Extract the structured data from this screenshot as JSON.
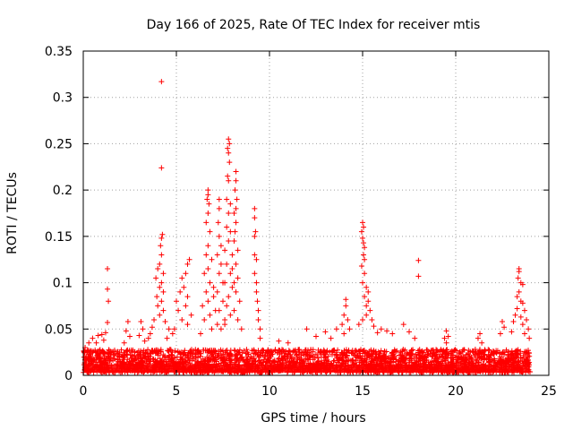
{
  "chart_data": {
    "type": "scatter",
    "title": "Day 166 of 2025, Rate Of TEC Index for receiver mtis",
    "xlabel": "GPS time / hours",
    "ylabel": "ROTI / TECUs",
    "xlim": [
      0,
      25
    ],
    "ylim": [
      0,
      0.35
    ],
    "x_ticks": [
      0,
      5,
      10,
      15,
      20,
      25
    ],
    "y_ticks": [
      0,
      0.05,
      0.1,
      0.15,
      0.2,
      0.25,
      0.3,
      0.35
    ],
    "x_tick_labels": [
      "0",
      "5",
      "10",
      "15",
      "20",
      "25"
    ],
    "y_tick_labels": [
      "0",
      "0.05",
      "0.1",
      "0.15",
      "0.2",
      "0.25",
      "0.3",
      "0.35"
    ],
    "grid": true,
    "marker": "plus",
    "marker_color": "#ff0000",
    "baseline_band": {
      "x_range": [
        0,
        24
      ],
      "y_range": [
        0.003,
        0.028
      ],
      "note": "dense cloud of points throughout the day"
    },
    "points": [
      {
        "x": 4.2,
        "y": 0.317
      },
      {
        "x": 4.2,
        "y": 0.224
      },
      {
        "x": 4.25,
        "y": 0.152
      },
      {
        "x": 4.2,
        "y": 0.148
      },
      {
        "x": 4.15,
        "y": 0.14
      },
      {
        "x": 4.2,
        "y": 0.13
      },
      {
        "x": 4.1,
        "y": 0.12
      },
      {
        "x": 4.0,
        "y": 0.115
      },
      {
        "x": 4.3,
        "y": 0.11
      },
      {
        "x": 3.9,
        "y": 0.105
      },
      {
        "x": 4.2,
        "y": 0.1
      },
      {
        "x": 4.1,
        "y": 0.095
      },
      {
        "x": 4.3,
        "y": 0.09
      },
      {
        "x": 3.95,
        "y": 0.085
      },
      {
        "x": 4.2,
        "y": 0.08
      },
      {
        "x": 4.0,
        "y": 0.075
      },
      {
        "x": 4.3,
        "y": 0.07
      },
      {
        "x": 4.1,
        "y": 0.065
      },
      {
        "x": 3.8,
        "y": 0.06
      },
      {
        "x": 4.4,
        "y": 0.058
      },
      {
        "x": 3.7,
        "y": 0.052
      },
      {
        "x": 4.6,
        "y": 0.05
      },
      {
        "x": 3.6,
        "y": 0.045
      },
      {
        "x": 4.8,
        "y": 0.045
      },
      {
        "x": 3.5,
        "y": 0.04
      },
      {
        "x": 4.5,
        "y": 0.04
      },
      {
        "x": 5.7,
        "y": 0.125
      },
      {
        "x": 5.6,
        "y": 0.12
      },
      {
        "x": 5.5,
        "y": 0.11
      },
      {
        "x": 5.3,
        "y": 0.105
      },
      {
        "x": 5.4,
        "y": 0.095
      },
      {
        "x": 5.2,
        "y": 0.09
      },
      {
        "x": 5.6,
        "y": 0.085
      },
      {
        "x": 5.0,
        "y": 0.08
      },
      {
        "x": 5.5,
        "y": 0.075
      },
      {
        "x": 5.1,
        "y": 0.07
      },
      {
        "x": 5.8,
        "y": 0.065
      },
      {
        "x": 5.3,
        "y": 0.06
      },
      {
        "x": 5.6,
        "y": 0.055
      },
      {
        "x": 4.9,
        "y": 0.05
      },
      {
        "x": 6.7,
        "y": 0.2
      },
      {
        "x": 6.7,
        "y": 0.195
      },
      {
        "x": 6.65,
        "y": 0.19
      },
      {
        "x": 6.75,
        "y": 0.185
      },
      {
        "x": 6.7,
        "y": 0.175
      },
      {
        "x": 6.6,
        "y": 0.165
      },
      {
        "x": 6.8,
        "y": 0.155
      },
      {
        "x": 6.7,
        "y": 0.14
      },
      {
        "x": 6.6,
        "y": 0.13
      },
      {
        "x": 6.9,
        "y": 0.125
      },
      {
        "x": 6.7,
        "y": 0.115
      },
      {
        "x": 6.5,
        "y": 0.11
      },
      {
        "x": 6.8,
        "y": 0.1
      },
      {
        "x": 7.0,
        "y": 0.095
      },
      {
        "x": 6.6,
        "y": 0.09
      },
      {
        "x": 7.0,
        "y": 0.085
      },
      {
        "x": 6.7,
        "y": 0.08
      },
      {
        "x": 6.4,
        "y": 0.075
      },
      {
        "x": 7.1,
        "y": 0.07
      },
      {
        "x": 6.8,
        "y": 0.065
      },
      {
        "x": 6.5,
        "y": 0.06
      },
      {
        "x": 7.2,
        "y": 0.055
      },
      {
        "x": 6.9,
        "y": 0.05
      },
      {
        "x": 6.3,
        "y": 0.045
      },
      {
        "x": 7.3,
        "y": 0.19
      },
      {
        "x": 7.3,
        "y": 0.18
      },
      {
        "x": 7.25,
        "y": 0.165
      },
      {
        "x": 7.3,
        "y": 0.15
      },
      {
        "x": 7.4,
        "y": 0.14
      },
      {
        "x": 7.2,
        "y": 0.13
      },
      {
        "x": 7.4,
        "y": 0.12
      },
      {
        "x": 7.3,
        "y": 0.11
      },
      {
        "x": 7.5,
        "y": 0.1
      },
      {
        "x": 7.2,
        "y": 0.09
      },
      {
        "x": 7.5,
        "y": 0.08
      },
      {
        "x": 7.3,
        "y": 0.07
      },
      {
        "x": 7.6,
        "y": 0.06
      },
      {
        "x": 7.4,
        "y": 0.05
      },
      {
        "x": 7.8,
        "y": 0.255
      },
      {
        "x": 7.85,
        "y": 0.25
      },
      {
        "x": 7.75,
        "y": 0.245
      },
      {
        "x": 7.8,
        "y": 0.24
      },
      {
        "x": 7.85,
        "y": 0.23
      },
      {
        "x": 7.75,
        "y": 0.215
      },
      {
        "x": 7.8,
        "y": 0.21
      },
      {
        "x": 7.7,
        "y": 0.19
      },
      {
        "x": 7.9,
        "y": 0.185
      },
      {
        "x": 7.8,
        "y": 0.175
      },
      {
        "x": 7.7,
        "y": 0.16
      },
      {
        "x": 7.9,
        "y": 0.155
      },
      {
        "x": 7.8,
        "y": 0.145
      },
      {
        "x": 7.6,
        "y": 0.135
      },
      {
        "x": 8.0,
        "y": 0.13
      },
      {
        "x": 7.7,
        "y": 0.12
      },
      {
        "x": 7.9,
        "y": 0.11
      },
      {
        "x": 7.6,
        "y": 0.1
      },
      {
        "x": 8.0,
        "y": 0.095
      },
      {
        "x": 7.8,
        "y": 0.085
      },
      {
        "x": 7.7,
        "y": 0.075
      },
      {
        "x": 7.9,
        "y": 0.065
      },
      {
        "x": 7.6,
        "y": 0.055
      },
      {
        "x": 8.2,
        "y": 0.22
      },
      {
        "x": 8.2,
        "y": 0.21
      },
      {
        "x": 8.15,
        "y": 0.2
      },
      {
        "x": 8.25,
        "y": 0.19
      },
      {
        "x": 8.2,
        "y": 0.18
      },
      {
        "x": 8.1,
        "y": 0.175
      },
      {
        "x": 8.2,
        "y": 0.165
      },
      {
        "x": 8.15,
        "y": 0.155
      },
      {
        "x": 8.1,
        "y": 0.145
      },
      {
        "x": 8.3,
        "y": 0.135
      },
      {
        "x": 8.2,
        "y": 0.12
      },
      {
        "x": 8.0,
        "y": 0.115
      },
      {
        "x": 8.3,
        "y": 0.105
      },
      {
        "x": 8.1,
        "y": 0.1
      },
      {
        "x": 8.2,
        "y": 0.09
      },
      {
        "x": 8.4,
        "y": 0.08
      },
      {
        "x": 8.1,
        "y": 0.07
      },
      {
        "x": 8.3,
        "y": 0.06
      },
      {
        "x": 8.5,
        "y": 0.05
      },
      {
        "x": 9.2,
        "y": 0.18
      },
      {
        "x": 9.2,
        "y": 0.17
      },
      {
        "x": 9.25,
        "y": 0.155
      },
      {
        "x": 9.2,
        "y": 0.15
      },
      {
        "x": 9.2,
        "y": 0.13
      },
      {
        "x": 9.3,
        "y": 0.125
      },
      {
        "x": 9.2,
        "y": 0.11
      },
      {
        "x": 9.3,
        "y": 0.1
      },
      {
        "x": 9.3,
        "y": 0.09
      },
      {
        "x": 9.35,
        "y": 0.08
      },
      {
        "x": 9.4,
        "y": 0.07
      },
      {
        "x": 9.4,
        "y": 0.06
      },
      {
        "x": 9.5,
        "y": 0.05
      },
      {
        "x": 9.5,
        "y": 0.04
      },
      {
        "x": 1.3,
        "y": 0.115
      },
      {
        "x": 1.3,
        "y": 0.093
      },
      {
        "x": 1.35,
        "y": 0.08
      },
      {
        "x": 1.3,
        "y": 0.057
      },
      {
        "x": 1.2,
        "y": 0.046
      },
      {
        "x": 1.0,
        "y": 0.044
      },
      {
        "x": 0.8,
        "y": 0.043
      },
      {
        "x": 0.5,
        "y": 0.04
      },
      {
        "x": 0.3,
        "y": 0.035
      },
      {
        "x": 0.7,
        "y": 0.035
      },
      {
        "x": 1.1,
        "y": 0.038
      },
      {
        "x": 0.1,
        "y": 0.03
      },
      {
        "x": 2.4,
        "y": 0.058
      },
      {
        "x": 2.3,
        "y": 0.048
      },
      {
        "x": 2.5,
        "y": 0.042
      },
      {
        "x": 2.2,
        "y": 0.035
      },
      {
        "x": 3.1,
        "y": 0.058
      },
      {
        "x": 3.2,
        "y": 0.05
      },
      {
        "x": 3.0,
        "y": 0.043
      },
      {
        "x": 3.3,
        "y": 0.037
      },
      {
        "x": 10.5,
        "y": 0.037
      },
      {
        "x": 11.0,
        "y": 0.035
      },
      {
        "x": 12.0,
        "y": 0.05
      },
      {
        "x": 12.5,
        "y": 0.042
      },
      {
        "x": 13.0,
        "y": 0.047
      },
      {
        "x": 13.3,
        "y": 0.04
      },
      {
        "x": 13.6,
        "y": 0.05
      },
      {
        "x": 14.1,
        "y": 0.082
      },
      {
        "x": 14.1,
        "y": 0.075
      },
      {
        "x": 14.0,
        "y": 0.065
      },
      {
        "x": 14.2,
        "y": 0.06
      },
      {
        "x": 13.9,
        "y": 0.055
      },
      {
        "x": 14.3,
        "y": 0.05
      },
      {
        "x": 14.0,
        "y": 0.045
      },
      {
        "x": 15.0,
        "y": 0.165
      },
      {
        "x": 15.05,
        "y": 0.16
      },
      {
        "x": 14.95,
        "y": 0.155
      },
      {
        "x": 15.0,
        "y": 0.148
      },
      {
        "x": 15.05,
        "y": 0.143
      },
      {
        "x": 15.1,
        "y": 0.138
      },
      {
        "x": 15.05,
        "y": 0.13
      },
      {
        "x": 15.1,
        "y": 0.125
      },
      {
        "x": 14.95,
        "y": 0.118
      },
      {
        "x": 15.1,
        "y": 0.11
      },
      {
        "x": 15.0,
        "y": 0.1
      },
      {
        "x": 15.2,
        "y": 0.095
      },
      {
        "x": 15.3,
        "y": 0.09
      },
      {
        "x": 15.1,
        "y": 0.085
      },
      {
        "x": 15.3,
        "y": 0.08
      },
      {
        "x": 15.2,
        "y": 0.075
      },
      {
        "x": 15.4,
        "y": 0.07
      },
      {
        "x": 15.0,
        "y": 0.06
      },
      {
        "x": 15.2,
        "y": 0.065
      },
      {
        "x": 15.5,
        "y": 0.06
      },
      {
        "x": 14.8,
        "y": 0.055
      },
      {
        "x": 15.6,
        "y": 0.053
      },
      {
        "x": 16.0,
        "y": 0.05
      },
      {
        "x": 15.8,
        "y": 0.046
      },
      {
        "x": 16.3,
        "y": 0.048
      },
      {
        "x": 16.6,
        "y": 0.045
      },
      {
        "x": 17.2,
        "y": 0.055
      },
      {
        "x": 17.5,
        "y": 0.047
      },
      {
        "x": 18.0,
        "y": 0.124
      },
      {
        "x": 18.0,
        "y": 0.107
      },
      {
        "x": 17.8,
        "y": 0.04
      },
      {
        "x": 19.5,
        "y": 0.048
      },
      {
        "x": 19.6,
        "y": 0.042
      },
      {
        "x": 19.4,
        "y": 0.04
      },
      {
        "x": 19.5,
        "y": 0.035
      },
      {
        "x": 21.3,
        "y": 0.045
      },
      {
        "x": 21.2,
        "y": 0.04
      },
      {
        "x": 21.4,
        "y": 0.035
      },
      {
        "x": 22.5,
        "y": 0.058
      },
      {
        "x": 22.6,
        "y": 0.052
      },
      {
        "x": 22.4,
        "y": 0.045
      },
      {
        "x": 23.4,
        "y": 0.115
      },
      {
        "x": 23.4,
        "y": 0.112
      },
      {
        "x": 23.35,
        "y": 0.105
      },
      {
        "x": 23.5,
        "y": 0.1
      },
      {
        "x": 23.6,
        "y": 0.098
      },
      {
        "x": 23.4,
        "y": 0.09
      },
      {
        "x": 23.3,
        "y": 0.085
      },
      {
        "x": 23.5,
        "y": 0.08
      },
      {
        "x": 23.6,
        "y": 0.078
      },
      {
        "x": 23.3,
        "y": 0.072
      },
      {
        "x": 23.7,
        "y": 0.07
      },
      {
        "x": 23.2,
        "y": 0.065
      },
      {
        "x": 23.5,
        "y": 0.063
      },
      {
        "x": 23.8,
        "y": 0.06
      },
      {
        "x": 23.1,
        "y": 0.058
      },
      {
        "x": 23.6,
        "y": 0.055
      },
      {
        "x": 23.9,
        "y": 0.05
      },
      {
        "x": 23.0,
        "y": 0.047
      },
      {
        "x": 23.7,
        "y": 0.045
      },
      {
        "x": 23.95,
        "y": 0.04
      }
    ]
  }
}
